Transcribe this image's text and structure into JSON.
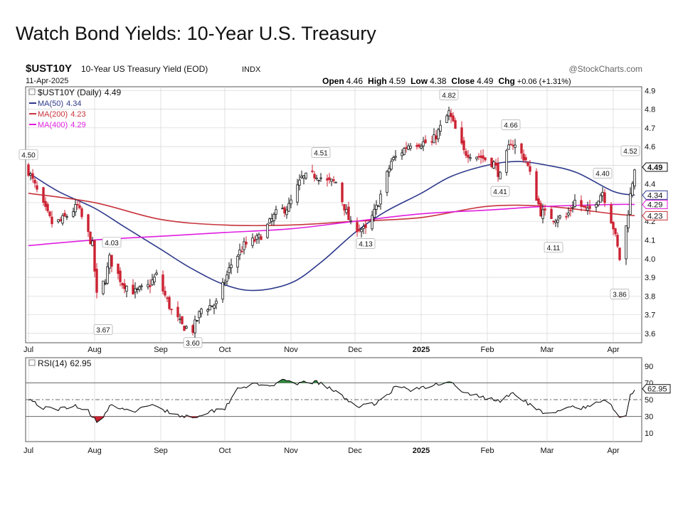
{
  "slide": {
    "title": "Watch Bond Yields: 10-Year U.S. Treasury"
  },
  "header": {
    "symbol": "$UST10Y",
    "description": "10-Year US Treasury Yield (EOD)",
    "exchange": "INDX",
    "date": "11-Apr-2025",
    "watermark": "@StockCharts.com",
    "ohlc": {
      "open_label": "Open",
      "open": "4.46",
      "high_label": "High",
      "high": "4.59",
      "low_label": "Low",
      "low": "4.38",
      "close_label": "Close",
      "close": "4.49",
      "chg_label": "Chg",
      "chg": "+0.06 (+1.31%)"
    }
  },
  "colors": {
    "up": "#111111",
    "down": "#cc2233",
    "ma50": "#2e3a8c",
    "ma200": "#c8343c",
    "ma400": "#e01ee0",
    "grid": "#d6d6d6",
    "rsi_line": "#111111",
    "rsi_overbought_fill": "#2e8b3c",
    "rsi_oversold_fill": "#cc2233"
  },
  "legend": [
    {
      "name": "$UST10Y (Daily)",
      "value": "4.49",
      "color": "#111111"
    },
    {
      "name": "MA(50)",
      "value": "4.34",
      "color": "#2e3a8c"
    },
    {
      "name": "MA(200)",
      "value": "4.23",
      "color": "#c8343c"
    },
    {
      "name": "MA(400)",
      "value": "4.29",
      "color": "#e01ee0"
    }
  ],
  "chart_data": {
    "type": "candlestick",
    "series_name": "$UST10Y (Daily)",
    "x_months": [
      "Jul",
      "Aug",
      "Sep",
      "Oct",
      "Nov",
      "Dec",
      "2025",
      "Feb",
      "Mar",
      "Apr"
    ],
    "ylim": [
      3.55,
      4.92
    ],
    "yticks": [
      "4.9",
      "4.8",
      "4.7",
      "4.6",
      "4.5",
      "4.4",
      "4.3",
      "4.2",
      "4.1",
      "4.0",
      "3.9",
      "3.8",
      "3.7",
      "3.6"
    ],
    "price_path": {
      "start_date": "2024-07-01",
      "end_date": "2025-04-11",
      "anchors": [
        [
          "2024-07-01",
          4.47
        ],
        [
          "2024-07-08",
          4.28
        ],
        [
          "2024-07-12",
          4.19
        ],
        [
          "2024-07-16",
          4.2
        ],
        [
          "2024-07-24",
          4.28
        ],
        [
          "2024-07-31",
          4.07
        ],
        [
          "2024-08-02",
          3.8
        ],
        [
          "2024-08-06",
          3.89
        ],
        [
          "2024-08-08",
          4.0
        ],
        [
          "2024-08-14",
          3.87
        ],
        [
          "2024-08-20",
          3.82
        ],
        [
          "2024-08-26",
          3.85
        ],
        [
          "2024-08-30",
          3.91
        ],
        [
          "2024-09-06",
          3.72
        ],
        [
          "2024-09-11",
          3.64
        ],
        [
          "2024-09-16",
          3.62
        ],
        [
          "2024-09-20",
          3.73
        ],
        [
          "2024-09-27",
          3.76
        ],
        [
          "2024-10-04",
          3.97
        ],
        [
          "2024-10-10",
          4.07
        ],
        [
          "2024-10-17",
          4.11
        ],
        [
          "2024-10-25",
          4.24
        ],
        [
          "2024-10-31",
          4.28
        ],
        [
          "2024-11-06",
          4.43
        ],
        [
          "2024-11-13",
          4.45
        ],
        [
          "2024-11-18",
          4.41
        ],
        [
          "2024-11-22",
          4.41
        ],
        [
          "2024-11-29",
          4.18
        ],
        [
          "2024-12-06",
          4.15
        ],
        [
          "2024-12-11",
          4.27
        ],
        [
          "2024-12-18",
          4.52
        ],
        [
          "2024-12-27",
          4.62
        ],
        [
          "2025-01-06",
          4.62
        ],
        [
          "2025-01-14",
          4.78
        ],
        [
          "2025-01-21",
          4.57
        ],
        [
          "2025-01-28",
          4.55
        ],
        [
          "2025-02-04",
          4.51
        ],
        [
          "2025-02-07",
          4.44
        ],
        [
          "2025-02-12",
          4.63
        ],
        [
          "2025-02-19",
          4.53
        ],
        [
          "2025-02-26",
          4.25
        ],
        [
          "2025-03-04",
          4.22
        ],
        [
          "2025-03-10",
          4.22
        ],
        [
          "2025-03-14",
          4.31
        ],
        [
          "2025-03-20",
          4.25
        ],
        [
          "2025-03-27",
          4.36
        ],
        [
          "2025-04-01",
          4.17
        ],
        [
          "2025-04-04",
          4.0
        ],
        [
          "2025-04-07",
          4.17
        ],
        [
          "2025-04-09",
          4.34
        ],
        [
          "2025-04-11",
          4.49
        ]
      ]
    },
    "moving_averages": [
      {
        "name": "MA(50)",
        "points": [
          [
            "2024-07-01",
            4.46
          ],
          [
            "2024-07-15",
            4.36
          ],
          [
            "2024-08-01",
            4.27
          ],
          [
            "2024-08-15",
            4.17
          ],
          [
            "2024-09-01",
            4.05
          ],
          [
            "2024-09-15",
            3.95
          ],
          [
            "2024-10-01",
            3.86
          ],
          [
            "2024-10-15",
            3.83
          ],
          [
            "2024-11-01",
            3.87
          ],
          [
            "2024-11-15",
            3.98
          ],
          [
            "2024-12-01",
            4.14
          ],
          [
            "2024-12-15",
            4.25
          ],
          [
            "2025-01-01",
            4.35
          ],
          [
            "2025-01-15",
            4.44
          ],
          [
            "2025-02-01",
            4.5
          ],
          [
            "2025-02-15",
            4.52
          ],
          [
            "2025-03-01",
            4.5
          ],
          [
            "2025-03-15",
            4.46
          ],
          [
            "2025-04-01",
            4.36
          ],
          [
            "2025-04-11",
            4.34
          ]
        ]
      },
      {
        "name": "MA(200)",
        "points": [
          [
            "2024-07-01",
            4.35
          ],
          [
            "2024-08-01",
            4.3
          ],
          [
            "2024-09-01",
            4.21
          ],
          [
            "2024-10-01",
            4.18
          ],
          [
            "2024-11-01",
            4.18
          ],
          [
            "2024-12-01",
            4.2
          ],
          [
            "2025-01-01",
            4.22
          ],
          [
            "2025-02-01",
            4.28
          ],
          [
            "2025-03-01",
            4.28
          ],
          [
            "2025-04-01",
            4.24
          ],
          [
            "2025-04-11",
            4.23
          ]
        ]
      },
      {
        "name": "MA(400)",
        "points": [
          [
            "2024-07-01",
            4.07
          ],
          [
            "2024-08-01",
            4.1
          ],
          [
            "2024-09-01",
            4.12
          ],
          [
            "2024-10-01",
            4.14
          ],
          [
            "2024-11-01",
            4.16
          ],
          [
            "2024-12-01",
            4.2
          ],
          [
            "2025-01-01",
            4.24
          ],
          [
            "2025-02-01",
            4.26
          ],
          [
            "2025-03-01",
            4.28
          ],
          [
            "2025-04-01",
            4.29
          ],
          [
            "2025-04-11",
            4.29
          ]
        ]
      }
    ],
    "annotations": [
      {
        "date": "2024-07-01",
        "value": 4.5,
        "label": "4.50",
        "pos": "above"
      },
      {
        "date": "2024-08-05",
        "value": 3.67,
        "label": "3.67",
        "pos": "below"
      },
      {
        "date": "2024-08-09",
        "value": 4.03,
        "label": "4.03",
        "pos": "above"
      },
      {
        "date": "2024-09-16",
        "value": 3.6,
        "label": "3.60",
        "pos": "below"
      },
      {
        "date": "2024-11-15",
        "value": 4.51,
        "label": "4.51",
        "pos": "above"
      },
      {
        "date": "2024-12-06",
        "value": 4.13,
        "label": "4.13",
        "pos": "below"
      },
      {
        "date": "2025-01-14",
        "value": 4.82,
        "label": "4.82",
        "pos": "above"
      },
      {
        "date": "2025-02-07",
        "value": 4.41,
        "label": "4.41",
        "pos": "below"
      },
      {
        "date": "2025-02-12",
        "value": 4.66,
        "label": "4.66",
        "pos": "above"
      },
      {
        "date": "2025-03-04",
        "value": 4.11,
        "label": "4.11",
        "pos": "below"
      },
      {
        "date": "2025-03-27",
        "value": 4.4,
        "label": "4.40",
        "pos": "above"
      },
      {
        "date": "2025-04-04",
        "value": 3.86,
        "label": "3.86",
        "pos": "below"
      },
      {
        "date": "2025-04-09",
        "value": 4.52,
        "label": "4.52",
        "pos": "above"
      }
    ],
    "right_tags": [
      {
        "value": 4.49,
        "label": "4.49",
        "color": "#111111",
        "bold": true
      },
      {
        "value": 4.34,
        "label": "4.34",
        "color": "#2e3a8c"
      },
      {
        "value": 4.29,
        "label": "4.29",
        "color": "#e01ee0"
      },
      {
        "value": 4.23,
        "label": "4.23",
        "color": "#c8343c"
      }
    ],
    "rsi": {
      "name": "RSI(14)",
      "value": "62.95",
      "ylim": [
        0,
        100
      ],
      "yticks": [
        "90",
        "70",
        "50",
        "30",
        "10"
      ],
      "levels": [
        70,
        50,
        30
      ],
      "points": [
        [
          "2024-07-01",
          52
        ],
        [
          "2024-07-08",
          40
        ],
        [
          "2024-07-15",
          38
        ],
        [
          "2024-07-22",
          44
        ],
        [
          "2024-07-29",
          36
        ],
        [
          "2024-08-02",
          25
        ],
        [
          "2024-08-06",
          33
        ],
        [
          "2024-08-09",
          45
        ],
        [
          "2024-08-15",
          36
        ],
        [
          "2024-08-22",
          38
        ],
        [
          "2024-08-29",
          44
        ],
        [
          "2024-09-05",
          35
        ],
        [
          "2024-09-12",
          30
        ],
        [
          "2024-09-17",
          30
        ],
        [
          "2024-09-24",
          36
        ],
        [
          "2024-10-01",
          40
        ],
        [
          "2024-10-07",
          64
        ],
        [
          "2024-10-14",
          68
        ],
        [
          "2024-10-21",
          66
        ],
        [
          "2024-10-28",
          72
        ],
        [
          "2024-11-04",
          68
        ],
        [
          "2024-11-08",
          72
        ],
        [
          "2024-11-14",
          70
        ],
        [
          "2024-11-20",
          62
        ],
        [
          "2024-11-26",
          52
        ],
        [
          "2024-12-03",
          42
        ],
        [
          "2024-12-09",
          44
        ],
        [
          "2024-12-16",
          55
        ],
        [
          "2024-12-20",
          66
        ],
        [
          "2024-12-27",
          62
        ],
        [
          "2025-01-03",
          64
        ],
        [
          "2025-01-09",
          69
        ],
        [
          "2025-01-14",
          73
        ],
        [
          "2025-01-20",
          58
        ],
        [
          "2025-01-27",
          55
        ],
        [
          "2025-02-03",
          50
        ],
        [
          "2025-02-07",
          48
        ],
        [
          "2025-02-12",
          58
        ],
        [
          "2025-02-18",
          50
        ],
        [
          "2025-02-24",
          38
        ],
        [
          "2025-03-03",
          32
        ],
        [
          "2025-03-07",
          36
        ],
        [
          "2025-03-12",
          42
        ],
        [
          "2025-03-18",
          40
        ],
        [
          "2025-03-24",
          45
        ],
        [
          "2025-03-28",
          50
        ],
        [
          "2025-04-02",
          38
        ],
        [
          "2025-04-04",
          28
        ],
        [
          "2025-04-07",
          33
        ],
        [
          "2025-04-09",
          55
        ],
        [
          "2025-04-11",
          63
        ]
      ]
    }
  }
}
